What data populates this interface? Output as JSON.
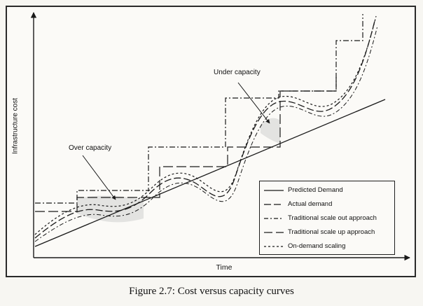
{
  "figure": {
    "caption": "Figure 2.7: Cost versus capacity curves"
  },
  "axes": {
    "xlabel": "Time",
    "ylabel": "Infrastructure  cost"
  },
  "annotations": {
    "over_capacity": "Over capacity",
    "under_capacity": "Under capacity"
  },
  "legend": {
    "items": [
      {
        "label": "Predicted Demand",
        "style": "solid"
      },
      {
        "label": "Actual demand",
        "style": "long-dash"
      },
      {
        "label": "Traditional scale out approach",
        "style": "dash-dot"
      },
      {
        "label": "Traditional scale up approach",
        "style": "long-dash-gap"
      },
      {
        "label": "On-demand scaling",
        "style": "short-dash"
      }
    ]
  },
  "colors": {
    "line": "#1a1a1a",
    "shade": "#c8c8c8"
  }
}
